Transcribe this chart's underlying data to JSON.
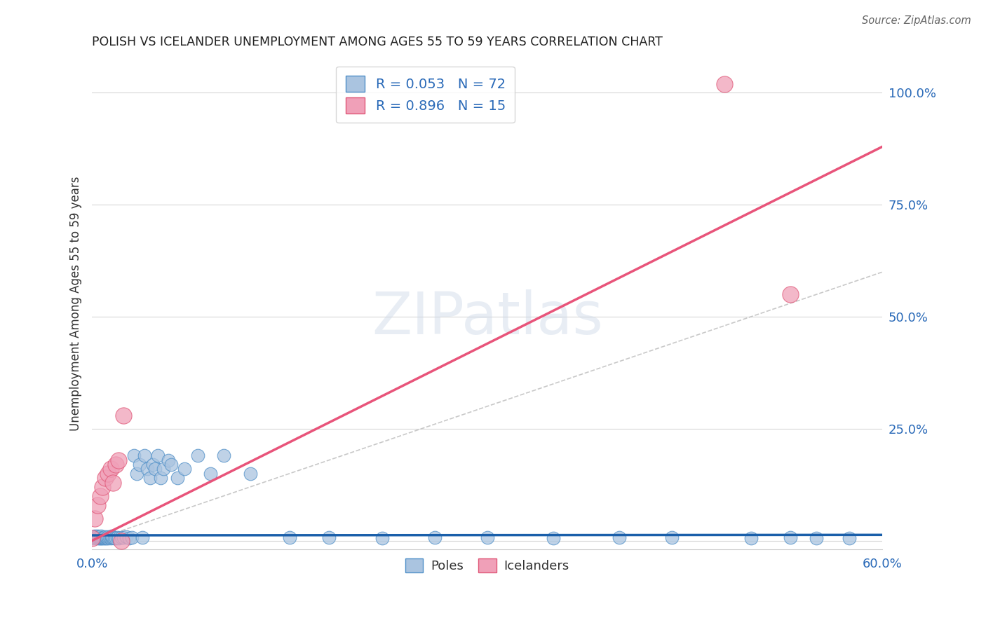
{
  "title": "POLISH VS ICELANDER UNEMPLOYMENT AMONG AGES 55 TO 59 YEARS CORRELATION CHART",
  "source": "Source: ZipAtlas.com",
  "ylabel": "Unemployment Among Ages 55 to 59 years",
  "xlim": [
    0.0,
    0.6
  ],
  "ylim": [
    -0.02,
    1.08
  ],
  "background_color": "#ffffff",
  "grid_color": "#d8d8d8",
  "poles_face_color": "#aac4e0",
  "poles_edge_color": "#5090c8",
  "icel_face_color": "#f0a0b8",
  "icel_edge_color": "#e05878",
  "poles_line_color": "#1a5faa",
  "icel_line_color": "#e8547a",
  "diag_color": "#bbbbbb",
  "R_poles": 0.053,
  "N_poles": 72,
  "R_icel": 0.896,
  "N_icel": 15,
  "poles_x": [
    0.0,
    0.001,
    0.002,
    0.002,
    0.003,
    0.003,
    0.004,
    0.004,
    0.005,
    0.005,
    0.005,
    0.006,
    0.006,
    0.007,
    0.007,
    0.007,
    0.008,
    0.008,
    0.009,
    0.009,
    0.01,
    0.01,
    0.011,
    0.011,
    0.012,
    0.012,
    0.013,
    0.014,
    0.015,
    0.015,
    0.016,
    0.017,
    0.018,
    0.019,
    0.02,
    0.022,
    0.024,
    0.026,
    0.028,
    0.03,
    0.032,
    0.034,
    0.036,
    0.038,
    0.04,
    0.042,
    0.044,
    0.046,
    0.048,
    0.05,
    0.052,
    0.054,
    0.058,
    0.06,
    0.065,
    0.07,
    0.08,
    0.09,
    0.1,
    0.12,
    0.15,
    0.18,
    0.22,
    0.26,
    0.3,
    0.35,
    0.4,
    0.44,
    0.5,
    0.53,
    0.55,
    0.575
  ],
  "poles_y": [
    0.008,
    0.006,
    0.008,
    0.01,
    0.007,
    0.009,
    0.006,
    0.01,
    0.005,
    0.007,
    0.009,
    0.006,
    0.008,
    0.005,
    0.007,
    0.01,
    0.006,
    0.008,
    0.005,
    0.007,
    0.006,
    0.009,
    0.005,
    0.008,
    0.006,
    0.009,
    0.007,
    0.006,
    0.008,
    0.01,
    0.007,
    0.006,
    0.005,
    0.007,
    0.006,
    0.008,
    0.007,
    0.009,
    0.006,
    0.008,
    0.19,
    0.15,
    0.17,
    0.008,
    0.19,
    0.16,
    0.14,
    0.17,
    0.16,
    0.19,
    0.14,
    0.16,
    0.18,
    0.17,
    0.14,
    0.16,
    0.19,
    0.15,
    0.19,
    0.15,
    0.008,
    0.007,
    0.006,
    0.008,
    0.007,
    0.006,
    0.008,
    0.007,
    0.006,
    0.007,
    0.006,
    0.005
  ],
  "icel_x": [
    0.0,
    0.002,
    0.004,
    0.006,
    0.008,
    0.01,
    0.012,
    0.014,
    0.016,
    0.018,
    0.02,
    0.022,
    0.024,
    0.48,
    0.53
  ],
  "icel_y": [
    0.006,
    0.05,
    0.08,
    0.1,
    0.12,
    0.14,
    0.15,
    0.16,
    0.13,
    0.17,
    0.18,
    0.0,
    0.28,
    1.02,
    0.55
  ],
  "icel_line_x0": 0.0,
  "icel_line_x1": 0.6,
  "icel_line_y0": 0.0,
  "icel_line_y1": 0.88,
  "poles_line_y0": 0.012,
  "poles_line_y1": 0.013
}
